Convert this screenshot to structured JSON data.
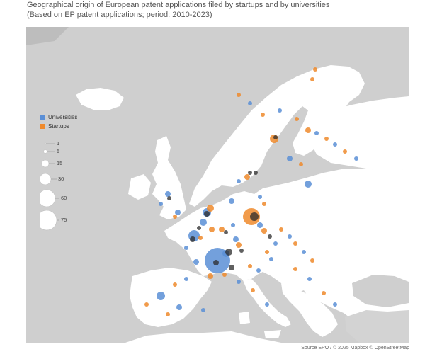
{
  "title": {
    "line1": "Geographical origin of European patent applications filed by startups and by universities",
    "line2": "(Based on EP patent applications; period: 2010-2023)"
  },
  "legend": {
    "universities": "Universities",
    "startups": "Startups",
    "size_labels": [
      "1",
      "5",
      "15",
      "30",
      "60",
      "75"
    ]
  },
  "colors": {
    "universities": "#5b8fd6",
    "startups": "#ef8a2c",
    "sea": "#a8a8a8",
    "land": "#ffffff",
    "background_land": "#d3d3d3"
  },
  "source": "Source EPO / © 2025 Mapbox © OpenStreetMap",
  "map_icon": "map-marker-icon"
}
